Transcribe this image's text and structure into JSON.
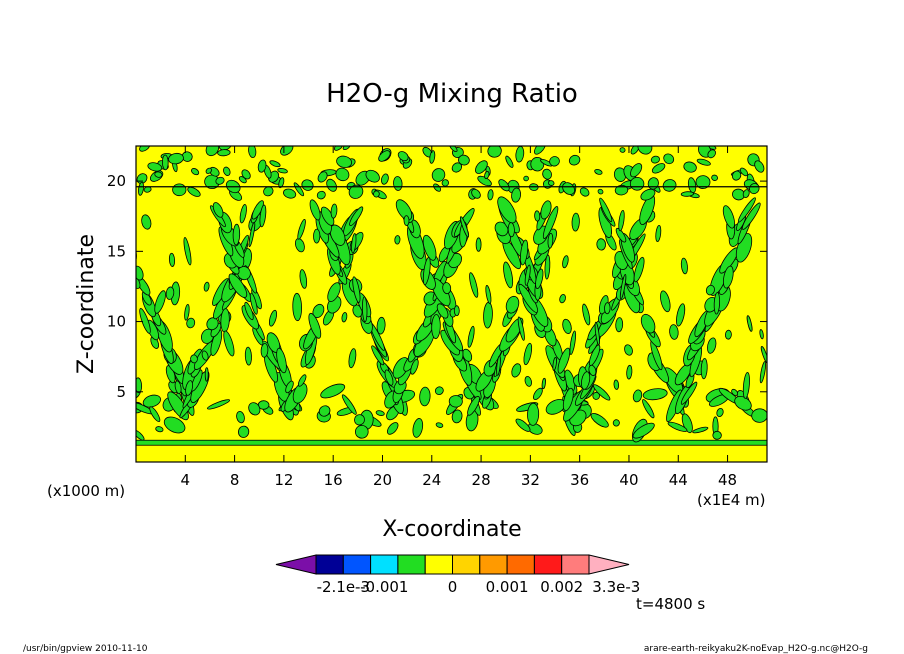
{
  "chart_data": {
    "type": "heatmap",
    "title": "H2O-g Mixing Ratio",
    "xlabel": "X-coordinate",
    "ylabel": "Z-coordinate",
    "x_unit_left": "(x1000 m)",
    "x_unit_right": "(x1E4 m)",
    "x_ticks": [
      4,
      8,
      12,
      16,
      20,
      24,
      28,
      32,
      36,
      40,
      44,
      48
    ],
    "y_ticks": [
      5,
      10,
      15,
      20
    ],
    "xlim": [
      0,
      51.2
    ],
    "ylim": [
      0,
      22.5
    ],
    "colorbar": {
      "colors": [
        "#7b0fa8",
        "#000096",
        "#0055ff",
        "#00e0ff",
        "#22dd22",
        "#ffff00",
        "#ffd400",
        "#ff9a00",
        "#ff6a00",
        "#ff1a1a",
        "#ff7c7c",
        "#ffb0c0"
      ],
      "labels": [
        "-2.1e-3",
        "-0.001",
        "0",
        "0.001",
        "0.002",
        "3.3e-3"
      ]
    },
    "dominant_levels": {
      "background": "#ffff00",
      "anomaly": "#22dd22"
    },
    "time_label": "t=4800 s"
  },
  "footer": {
    "left": "/usr/bin/gpview   2010-11-10",
    "right": "arare-earth-reikyaku2K-noEvap_H2O-g.nc@H2O-g"
  }
}
